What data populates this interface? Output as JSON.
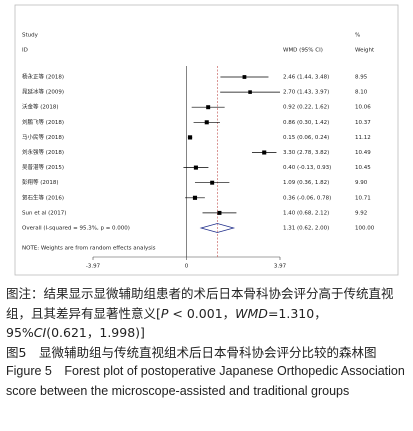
{
  "chart_data": {
    "type": "forest",
    "headers": {
      "study": "Study",
      "id": "ID",
      "effect": "WMD (95% CI)",
      "percent": "%",
      "weight": "Weight"
    },
    "studies": [
      "杨永正等 (2018)",
      "晁延冰等 (2009)",
      "沃金等 (2018)",
      "刘鹏飞等 (2018)",
      "马小民等 (2018)",
      "刘永强等 (2018)",
      "吴普湛等 (2015)",
      "彭翔等 (2018)",
      "贺石生等 (2016)",
      "Sun et al (2017)"
    ],
    "values": [
      2.46,
      2.7,
      0.92,
      0.86,
      0.15,
      3.3,
      0.4,
      1.09,
      0.36,
      1.4
    ],
    "lower": [
      1.44,
      1.43,
      0.22,
      0.3,
      0.06,
      2.78,
      -0.13,
      0.36,
      -0.06,
      0.68
    ],
    "upper": [
      3.48,
      3.97,
      1.62,
      1.42,
      0.24,
      3.82,
      0.93,
      1.82,
      0.78,
      2.12
    ],
    "value_labels": [
      "2.46 (1.44, 3.48)",
      "2.70 (1.43, 3.97)",
      "0.92 (0.22, 1.62)",
      "0.86 (0.30, 1.42)",
      "0.15 (0.06, 0.24)",
      "3.30 (2.78, 3.82)",
      "0.40 (-0.13, 0.93)",
      "1.09 (0.36, 1.82)",
      "0.36 (-0.06, 0.78)",
      "1.40 (0.68, 2.12)"
    ],
    "weights": [
      8.95,
      8.1,
      10.06,
      10.37,
      11.12,
      10.49,
      10.45,
      9.9,
      10.71,
      9.92
    ],
    "weight_labels": [
      "8.95",
      "8.10",
      "10.06",
      "10.37",
      "11.12",
      "10.49",
      "10.45",
      "9.90",
      "10.71",
      "9.92"
    ],
    "overall": {
      "label": "Overall  (I-squared = 95.3%, p = 0.000)",
      "value": 1.31,
      "lower": 0.62,
      "upper": 2.0,
      "value_label": "1.31 (0.62, 2.00)",
      "weight": 100,
      "weight_label": "100.00"
    },
    "note": "NOTE: Weights are from random effects analysis",
    "xlim": [
      -3.97,
      3.97
    ],
    "xticks": [
      -3.97,
      0,
      3.97
    ],
    "marker_color": "#000000",
    "diamond_color": "#1f2d8a",
    "overall_line_color": "#c0504d"
  },
  "caption": {
    "note_segments": [
      "图注：结果显示显微辅助组患者的术后日本骨科协会评分高于传统直视组，且其差异有显著性意义[",
      "P",
      " < 0.001，",
      "WMD",
      "=1.310，95%",
      "CI",
      "(0.621，1.998)]"
    ],
    "title_cn": "图5　显微辅助组与传统直视组术后日本骨科协会评分比较的森林图",
    "title_en": "Figure 5　Forest plot of postoperative Japanese Orthopedic Association score between the microscope-assisted and traditional groups"
  }
}
